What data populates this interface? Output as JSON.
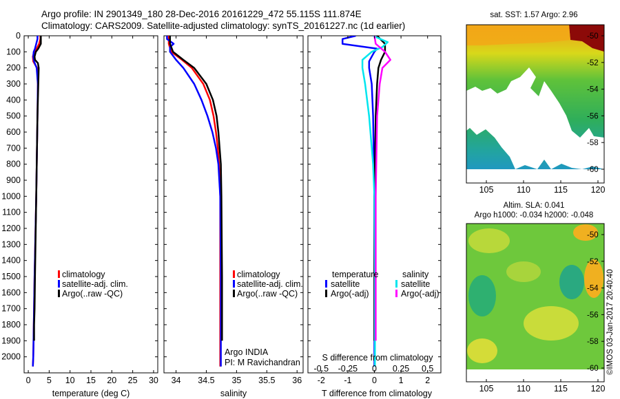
{
  "figure": {
    "title_line1": "Argo profile: IN 2901349_180 28-Dec-2016 20161229_472 55.115S 111.874E",
    "title_line2": "Climatology: CARS2009. Satellite-adjusted climatology: synTS_20161227.nc (1d earlier)",
    "credit": "©IMOS 03-Jan-2017 20:40:40",
    "float_owner": "Argo INDIA",
    "pi": "PI: M Ravichandran"
  },
  "colors": {
    "climatology": "#ff0000",
    "satellite": "#0000ff",
    "argo": "#000000",
    "sal_satellite": "#00e5ee",
    "sal_argo": "#ff00ff"
  },
  "legend_profiles": [
    "climatology",
    "satellite-adj. clim.",
    "Argo(..raw -QC)"
  ],
  "legend_diff": {
    "temperature_title": "temperature",
    "salinity_title": "salinity",
    "satellite": "satellite",
    "argo": "Argo(-adj)"
  },
  "maps": {
    "sst_title": "sat. SST: 1.57 Argo: 2.96",
    "sla_title1": "Altim. SLA: 0.041",
    "sla_title2": "Argo h1000: -0.034 h2000: -0.048",
    "lat_ticks": [
      "-50",
      "-52",
      "-54",
      "-56",
      "-58",
      "-60"
    ],
    "lon_ticks": [
      "105",
      "110",
      "115",
      "120"
    ]
  },
  "chart_data": [
    {
      "type": "line",
      "panel": "temperature",
      "xlabel": "temperature (deg C)",
      "ylabel": "",
      "xlim": [
        -1,
        31
      ],
      "ylim": [
        2100,
        0
      ],
      "xticks": [
        0,
        5,
        10,
        15,
        20,
        25,
        30
      ],
      "yticks": [
        0,
        100,
        200,
        300,
        400,
        500,
        600,
        700,
        800,
        900,
        1000,
        1100,
        1200,
        1300,
        1400,
        1500,
        1600,
        1700,
        1800,
        1900,
        2000
      ],
      "series": [
        {
          "name": "climatology",
          "depth": [
            0,
            20,
            50,
            80,
            100,
            130,
            160,
            200,
            300,
            500,
            1000,
            1500,
            2000,
            2060
          ],
          "values": [
            2.9,
            2.9,
            2.6,
            2.0,
            1.4,
            1.1,
            1.2,
            2.1,
            2.3,
            2.2,
            1.9,
            1.5,
            1.2,
            1.1
          ]
        },
        {
          "name": "satellite-adj. clim.",
          "depth": [
            0,
            20,
            50,
            80,
            100,
            130,
            160,
            200,
            300,
            500,
            1000,
            1500,
            2000,
            2060
          ],
          "values": [
            2.2,
            2.2,
            1.9,
            1.6,
            1.3,
            1.2,
            1.4,
            2.0,
            2.3,
            2.2,
            1.9,
            1.5,
            1.2,
            1.1
          ]
        },
        {
          "name": "Argo(..raw -QC)",
          "depth": [
            0,
            20,
            50,
            80,
            100,
            130,
            150,
            170,
            200,
            300,
            500,
            1000,
            1500,
            1700,
            1800,
            1900
          ],
          "values": [
            3.0,
            3.0,
            3.0,
            2.4,
            1.8,
            1.5,
            1.6,
            2.3,
            2.5,
            2.4,
            2.2,
            1.9,
            1.6,
            1.5,
            1.4,
            1.4
          ]
        }
      ]
    },
    {
      "type": "line",
      "panel": "salinity",
      "xlabel": "salinity",
      "ylabel": "",
      "xlim": [
        33.8,
        36.1
      ],
      "ylim": [
        2100,
        0
      ],
      "xticks": [
        34,
        34.5,
        35,
        35.5,
        36
      ],
      "series": [
        {
          "name": "climatology",
          "depth": [
            0,
            50,
            100,
            150,
            200,
            300,
            400,
            500,
            600,
            700,
            800,
            1000,
            1500,
            2060
          ],
          "values": [
            33.88,
            33.88,
            33.92,
            34.1,
            34.26,
            34.45,
            34.56,
            34.62,
            34.66,
            34.69,
            34.71,
            34.73,
            34.73,
            34.73
          ]
        },
        {
          "name": "satellite-adj. clim.",
          "depth": [
            0,
            20,
            50,
            70,
            100,
            150,
            200,
            300,
            400,
            500,
            600,
            700,
            800,
            1000,
            1500,
            2060
          ],
          "values": [
            33.85,
            33.85,
            33.96,
            33.9,
            33.9,
            34.0,
            34.12,
            34.3,
            34.42,
            34.52,
            34.6,
            34.66,
            34.7,
            34.73,
            34.74,
            34.74
          ]
        },
        {
          "name": "Argo(..raw -QC)",
          "depth": [
            0,
            50,
            100,
            150,
            200,
            300,
            400,
            500,
            600,
            700,
            800,
            1000,
            1500,
            1900
          ],
          "values": [
            33.9,
            33.9,
            33.95,
            34.12,
            34.3,
            34.5,
            34.61,
            34.67,
            34.7,
            34.72,
            34.74,
            34.75,
            34.76,
            34.76
          ]
        }
      ]
    },
    {
      "type": "line",
      "panel": "difference",
      "xlabel": "T difference from climatology",
      "x2label": "S difference from climatology",
      "ylabel": "",
      "xlim": [
        -2.5,
        2.5
      ],
      "ylim": [
        2100,
        0
      ],
      "xticks": [
        -2,
        -1,
        0,
        1,
        2
      ],
      "x2ticks_labels": [
        "-0.5",
        "-0.25",
        "0",
        "0.25",
        "0.5"
      ],
      "series": [
        {
          "name": "temperature satellite",
          "depth": [
            0,
            20,
            50,
            80,
            100,
            130,
            160,
            200,
            300,
            500,
            1000,
            1500,
            2000,
            2060
          ],
          "values": [
            -0.7,
            -1.2,
            -1.2,
            0.1,
            0.0,
            -0.1,
            -0.2,
            -0.2,
            -0.1,
            -0.05,
            0.0,
            0.0,
            0.0,
            0.0
          ]
        },
        {
          "name": "temperature Argo(-adj)",
          "depth": [
            0,
            50,
            100,
            150,
            200,
            300,
            500,
            1000,
            1500,
            1900
          ],
          "values": [
            0.1,
            0.4,
            0.4,
            0.25,
            0.15,
            0.1,
            0.05,
            0.0,
            0.0,
            0.0
          ]
        },
        {
          "name": "salinity satellite",
          "depth": [
            0,
            40,
            70,
            100,
            150,
            200,
            300,
            500,
            800,
            1000,
            1500,
            2060
          ],
          "values": [
            -0.05,
            0.5,
            0.3,
            -0.1,
            -0.45,
            -0.45,
            -0.35,
            -0.2,
            -0.05,
            0.0,
            0.02,
            0.02
          ]
        },
        {
          "name": "salinity Argo(-adj)",
          "depth": [
            0,
            50,
            100,
            150,
            200,
            300,
            500,
            1000,
            1500,
            1900
          ],
          "values": [
            0.0,
            0.05,
            0.4,
            0.6,
            0.3,
            0.2,
            0.1,
            0.05,
            0.05,
            0.05
          ]
        }
      ]
    }
  ]
}
